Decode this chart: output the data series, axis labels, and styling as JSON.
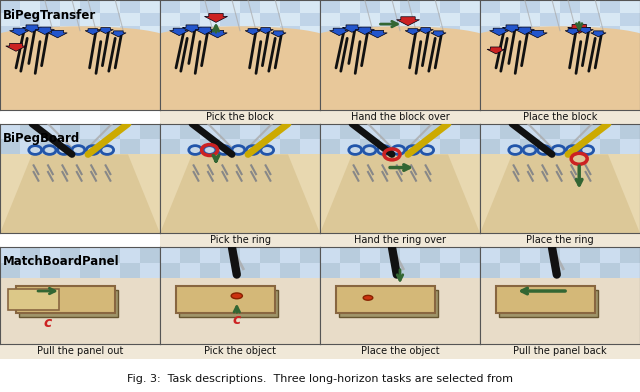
{
  "step_labels": [
    [
      "",
      "Pick the block",
      "Hand the block over",
      "Place the block"
    ],
    [
      "",
      "Pick the ring",
      "Hand the ring over",
      "Place the ring"
    ],
    [
      "Pull the panel out",
      "Pick the object",
      "Place the object",
      "Pull the panel back"
    ]
  ],
  "task_names": [
    "BiPegTransfer",
    "BiPegBoard",
    "MatchBoardPanel"
  ],
  "caption": "Fig. 3:  Task descriptions.  Three long-horizon tasks are selected from",
  "label_fontsize": 7.0,
  "task_label_fontsize": 8.5,
  "caption_fontsize": 8.0,
  "fig_width": 6.4,
  "fig_height": 3.92,
  "dpi": 100,
  "colors": {
    "checker_light": "#d0dff0",
    "checker_dark": "#a8c0dc",
    "skin_light": "#f0d8b8",
    "skin_mid": "#e8c8a0",
    "skin_dark": "#d8b888",
    "board_bg": "#dcc898",
    "board_dark": "#c8b070",
    "peg_blue": "#2255cc",
    "peg_red": "#cc2222",
    "peg_black": "#111111",
    "arrow_green": "#336633",
    "ring_blue": "#2255aa",
    "ring_red": "#cc2222",
    "arm_gray": "#888888",
    "arm_black": "#111111",
    "arm_yellow": "#ccaa00",
    "panel_tan": "#d4b878",
    "panel_dark": "#c09850",
    "panel_shadow": "#888870",
    "white": "#ffffff",
    "border": "#666666",
    "label_bg": "#f0e8d8"
  }
}
